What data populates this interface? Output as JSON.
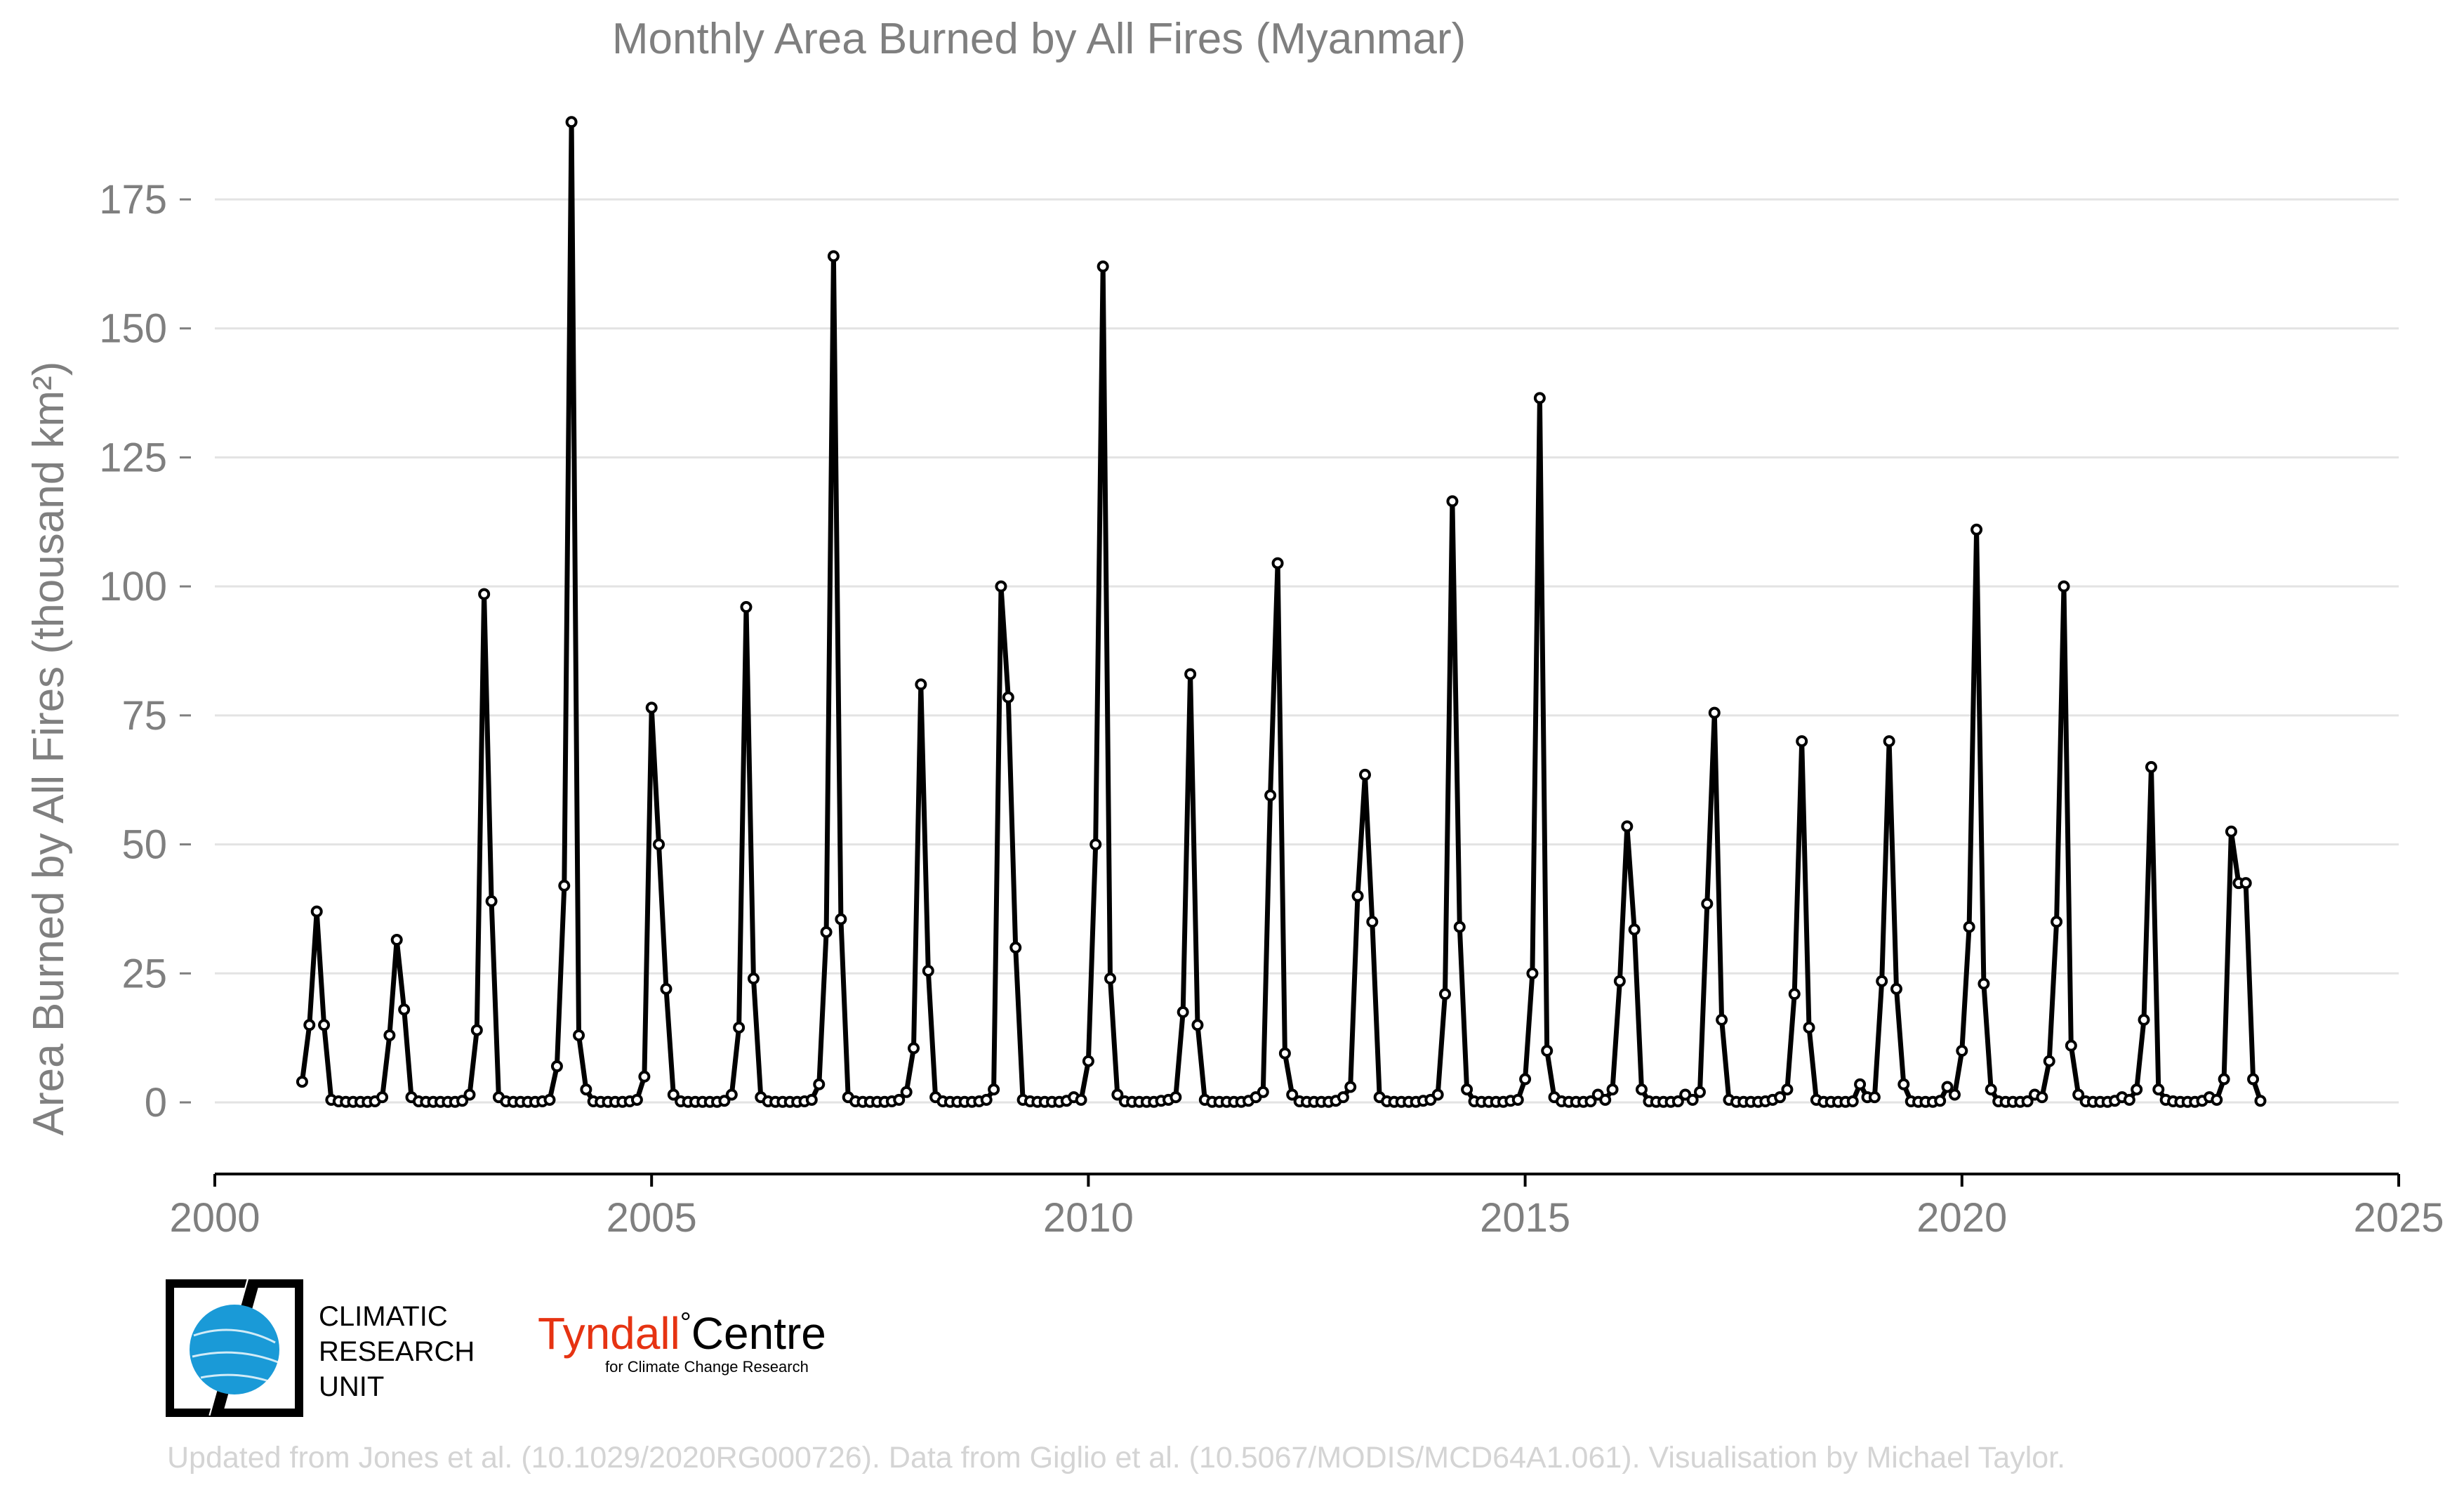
{
  "chart_data": {
    "type": "line",
    "title": "Monthly Area Burned by All Fires (Myanmar)",
    "ylabel": "Area Burned by All Fires (thousand km²)",
    "xlabel": "",
    "xlim": [
      2000,
      2025
    ],
    "ylim": [
      -15,
      195
    ],
    "x_ticks": [
      2000,
      2005,
      2010,
      2015,
      2020,
      2025
    ],
    "y_ticks": [
      0,
      25,
      50,
      75,
      100,
      125,
      150,
      175
    ],
    "grid": "horizontal",
    "series": [
      {
        "values": [
          [
            2001.0,
            4
          ],
          [
            2001.083,
            15
          ],
          [
            2001.167,
            37
          ],
          [
            2001.25,
            15
          ],
          [
            2001.333,
            0.5
          ],
          [
            2001.417,
            0.2
          ],
          [
            2001.5,
            0.1
          ],
          [
            2001.583,
            0.1
          ],
          [
            2001.667,
            0.1
          ],
          [
            2001.75,
            0.1
          ],
          [
            2001.833,
            0.2
          ],
          [
            2001.917,
            1
          ],
          [
            2002.0,
            13
          ],
          [
            2002.083,
            31.5
          ],
          [
            2002.167,
            18
          ],
          [
            2002.25,
            1
          ],
          [
            2002.333,
            0.2
          ],
          [
            2002.417,
            0.1
          ],
          [
            2002.5,
            0.1
          ],
          [
            2002.583,
            0.1
          ],
          [
            2002.667,
            0.1
          ],
          [
            2002.75,
            0.1
          ],
          [
            2002.833,
            0.3
          ],
          [
            2002.917,
            1.5
          ],
          [
            2003.0,
            14
          ],
          [
            2003.083,
            98.5
          ],
          [
            2003.167,
            39
          ],
          [
            2003.25,
            1
          ],
          [
            2003.333,
            0.2
          ],
          [
            2003.417,
            0.1
          ],
          [
            2003.5,
            0.1
          ],
          [
            2003.583,
            0.1
          ],
          [
            2003.667,
            0.1
          ],
          [
            2003.75,
            0.2
          ],
          [
            2003.833,
            0.5
          ],
          [
            2003.917,
            7
          ],
          [
            2004.0,
            42
          ],
          [
            2004.083,
            190
          ],
          [
            2004.167,
            13
          ],
          [
            2004.25,
            2.5
          ],
          [
            2004.333,
            0.2
          ],
          [
            2004.417,
            0.1
          ],
          [
            2004.5,
            0.1
          ],
          [
            2004.583,
            0.1
          ],
          [
            2004.667,
            0.1
          ],
          [
            2004.75,
            0.2
          ],
          [
            2004.833,
            0.5
          ],
          [
            2004.917,
            5
          ],
          [
            2005.0,
            76.5
          ],
          [
            2005.083,
            50
          ],
          [
            2005.167,
            22
          ],
          [
            2005.25,
            1.5
          ],
          [
            2005.333,
            0.2
          ],
          [
            2005.417,
            0.1
          ],
          [
            2005.5,
            0.1
          ],
          [
            2005.583,
            0.1
          ],
          [
            2005.667,
            0.1
          ],
          [
            2005.75,
            0.1
          ],
          [
            2005.833,
            0.3
          ],
          [
            2005.917,
            1.5
          ],
          [
            2006.0,
            14.5
          ],
          [
            2006.083,
            96
          ],
          [
            2006.167,
            24
          ],
          [
            2006.25,
            1
          ],
          [
            2006.333,
            0.2
          ],
          [
            2006.417,
            0.1
          ],
          [
            2006.5,
            0.1
          ],
          [
            2006.583,
            0.1
          ],
          [
            2006.667,
            0.1
          ],
          [
            2006.75,
            0.2
          ],
          [
            2006.833,
            0.5
          ],
          [
            2006.917,
            3.5
          ],
          [
            2007.0,
            33
          ],
          [
            2007.083,
            164
          ],
          [
            2007.167,
            35.5
          ],
          [
            2007.25,
            1
          ],
          [
            2007.333,
            0.2
          ],
          [
            2007.417,
            0.1
          ],
          [
            2007.5,
            0.1
          ],
          [
            2007.583,
            0.1
          ],
          [
            2007.667,
            0.1
          ],
          [
            2007.75,
            0.2
          ],
          [
            2007.833,
            0.5
          ],
          [
            2007.917,
            2
          ],
          [
            2008.0,
            10.5
          ],
          [
            2008.083,
            81
          ],
          [
            2008.167,
            25.5
          ],
          [
            2008.25,
            1
          ],
          [
            2008.333,
            0.2
          ],
          [
            2008.417,
            0.1
          ],
          [
            2008.5,
            0.1
          ],
          [
            2008.583,
            0.1
          ],
          [
            2008.667,
            0.1
          ],
          [
            2008.75,
            0.2
          ],
          [
            2008.833,
            0.5
          ],
          [
            2008.917,
            2.5
          ],
          [
            2009.0,
            100
          ],
          [
            2009.083,
            78.5
          ],
          [
            2009.167,
            30
          ],
          [
            2009.25,
            0.5
          ],
          [
            2009.333,
            0.2
          ],
          [
            2009.417,
            0.1
          ],
          [
            2009.5,
            0.1
          ],
          [
            2009.583,
            0.1
          ],
          [
            2009.667,
            0.1
          ],
          [
            2009.75,
            0.3
          ],
          [
            2009.833,
            1
          ],
          [
            2009.917,
            0.5
          ],
          [
            2010.0,
            8
          ],
          [
            2010.083,
            50
          ],
          [
            2010.167,
            162
          ],
          [
            2010.25,
            24
          ],
          [
            2010.333,
            1.5
          ],
          [
            2010.417,
            0.2
          ],
          [
            2010.5,
            0.1
          ],
          [
            2010.583,
            0.1
          ],
          [
            2010.667,
            0.1
          ],
          [
            2010.75,
            0.1
          ],
          [
            2010.833,
            0.3
          ],
          [
            2010.917,
            0.5
          ],
          [
            2011.0,
            1
          ],
          [
            2011.083,
            17.5
          ],
          [
            2011.167,
            83
          ],
          [
            2011.25,
            15
          ],
          [
            2011.333,
            0.5
          ],
          [
            2011.417,
            0.1
          ],
          [
            2011.5,
            0.1
          ],
          [
            2011.583,
            0.1
          ],
          [
            2011.667,
            0.1
          ],
          [
            2011.75,
            0.1
          ],
          [
            2011.833,
            0.3
          ],
          [
            2011.917,
            1
          ],
          [
            2012.0,
            2
          ],
          [
            2012.083,
            59.5
          ],
          [
            2012.167,
            104.5
          ],
          [
            2012.25,
            9.5
          ],
          [
            2012.333,
            1.5
          ],
          [
            2012.417,
            0.2
          ],
          [
            2012.5,
            0.1
          ],
          [
            2012.583,
            0.1
          ],
          [
            2012.667,
            0.1
          ],
          [
            2012.75,
            0.1
          ],
          [
            2012.833,
            0.3
          ],
          [
            2012.917,
            1
          ],
          [
            2013.0,
            3
          ],
          [
            2013.083,
            40
          ],
          [
            2013.167,
            63.5
          ],
          [
            2013.25,
            35
          ],
          [
            2013.333,
            1
          ],
          [
            2013.417,
            0.2
          ],
          [
            2013.5,
            0.1
          ],
          [
            2013.583,
            0.1
          ],
          [
            2013.667,
            0.1
          ],
          [
            2013.75,
            0.1
          ],
          [
            2013.833,
            0.3
          ],
          [
            2013.917,
            0.5
          ],
          [
            2014.0,
            1.5
          ],
          [
            2014.083,
            21
          ],
          [
            2014.167,
            116.5
          ],
          [
            2014.25,
            34
          ],
          [
            2014.333,
            2.5
          ],
          [
            2014.417,
            0.2
          ],
          [
            2014.5,
            0.1
          ],
          [
            2014.583,
            0.1
          ],
          [
            2014.667,
            0.1
          ],
          [
            2014.75,
            0.1
          ],
          [
            2014.833,
            0.3
          ],
          [
            2014.917,
            0.5
          ],
          [
            2015.0,
            4.5
          ],
          [
            2015.083,
            25
          ],
          [
            2015.167,
            136.5
          ],
          [
            2015.25,
            10
          ],
          [
            2015.333,
            1
          ],
          [
            2015.417,
            0.2
          ],
          [
            2015.5,
            0.1
          ],
          [
            2015.583,
            0.1
          ],
          [
            2015.667,
            0.1
          ],
          [
            2015.75,
            0.2
          ],
          [
            2015.833,
            1.5
          ],
          [
            2015.917,
            0.5
          ],
          [
            2016.0,
            2.5
          ],
          [
            2016.083,
            23.5
          ],
          [
            2016.167,
            53.5
          ],
          [
            2016.25,
            33.5
          ],
          [
            2016.333,
            2.5
          ],
          [
            2016.417,
            0.2
          ],
          [
            2016.5,
            0.1
          ],
          [
            2016.583,
            0.1
          ],
          [
            2016.667,
            0.1
          ],
          [
            2016.75,
            0.2
          ],
          [
            2016.833,
            1.5
          ],
          [
            2016.917,
            0.5
          ],
          [
            2017.0,
            2
          ],
          [
            2017.083,
            38.5
          ],
          [
            2017.167,
            75.5
          ],
          [
            2017.25,
            16
          ],
          [
            2017.333,
            0.5
          ],
          [
            2017.417,
            0.1
          ],
          [
            2017.5,
            0.1
          ],
          [
            2017.583,
            0.1
          ],
          [
            2017.667,
            0.1
          ],
          [
            2017.75,
            0.2
          ],
          [
            2017.833,
            0.5
          ],
          [
            2017.917,
            1
          ],
          [
            2018.0,
            2.5
          ],
          [
            2018.083,
            21
          ],
          [
            2018.167,
            70
          ],
          [
            2018.25,
            14.5
          ],
          [
            2018.333,
            0.5
          ],
          [
            2018.417,
            0.1
          ],
          [
            2018.5,
            0.1
          ],
          [
            2018.583,
            0.1
          ],
          [
            2018.667,
            0.1
          ],
          [
            2018.75,
            0.2
          ],
          [
            2018.833,
            3.5
          ],
          [
            2018.917,
            1
          ],
          [
            2019.0,
            1
          ],
          [
            2019.083,
            23.5
          ],
          [
            2019.167,
            70
          ],
          [
            2019.25,
            22
          ],
          [
            2019.333,
            3.5
          ],
          [
            2019.417,
            0.2
          ],
          [
            2019.5,
            0.1
          ],
          [
            2019.583,
            0.1
          ],
          [
            2019.667,
            0.1
          ],
          [
            2019.75,
            0.3
          ],
          [
            2019.833,
            3
          ],
          [
            2019.917,
            1.5
          ],
          [
            2020.0,
            10
          ],
          [
            2020.083,
            34
          ],
          [
            2020.167,
            111
          ],
          [
            2020.25,
            23
          ],
          [
            2020.333,
            2.5
          ],
          [
            2020.417,
            0.2
          ],
          [
            2020.5,
            0.1
          ],
          [
            2020.583,
            0.1
          ],
          [
            2020.667,
            0.1
          ],
          [
            2020.75,
            0.2
          ],
          [
            2020.833,
            1.5
          ],
          [
            2020.917,
            1
          ],
          [
            2021.0,
            8
          ],
          [
            2021.083,
            35
          ],
          [
            2021.167,
            100
          ],
          [
            2021.25,
            11
          ],
          [
            2021.333,
            1.5
          ],
          [
            2021.417,
            0.2
          ],
          [
            2021.5,
            0.1
          ],
          [
            2021.583,
            0.1
          ],
          [
            2021.667,
            0.1
          ],
          [
            2021.75,
            0.3
          ],
          [
            2021.833,
            1
          ],
          [
            2021.917,
            0.5
          ],
          [
            2022.0,
            2.5
          ],
          [
            2022.083,
            16
          ],
          [
            2022.167,
            65
          ],
          [
            2022.25,
            2.5
          ],
          [
            2022.333,
            0.5
          ],
          [
            2022.417,
            0.2
          ],
          [
            2022.5,
            0.1
          ],
          [
            2022.583,
            0.1
          ],
          [
            2022.667,
            0.1
          ],
          [
            2022.75,
            0.3
          ],
          [
            2022.833,
            1
          ],
          [
            2022.917,
            0.5
          ],
          [
            2023.0,
            4.5
          ],
          [
            2023.083,
            52.5
          ],
          [
            2023.167,
            42.5
          ],
          [
            2023.25,
            42.5
          ],
          [
            2023.333,
            4.5
          ],
          [
            2023.417,
            0.3
          ]
        ]
      }
    ]
  },
  "logos": {
    "cru_text": [
      "CLIMATIC",
      "RESEARCH",
      "UNIT"
    ],
    "tyndall_red": "Tyndall",
    "tyndall_degree": "°",
    "tyndall_black": "Centre",
    "tyndall_sub": "for Climate Change Research",
    "cru_blue": "#1a9ad7",
    "tyndall_color": "#e63312"
  },
  "footer": "Updated from Jones et al. (10.1029/2020RG000726). Data from Giglio et al. (10.5067/MODIS/MCD64A1.061). Visualisation by Michael Taylor."
}
